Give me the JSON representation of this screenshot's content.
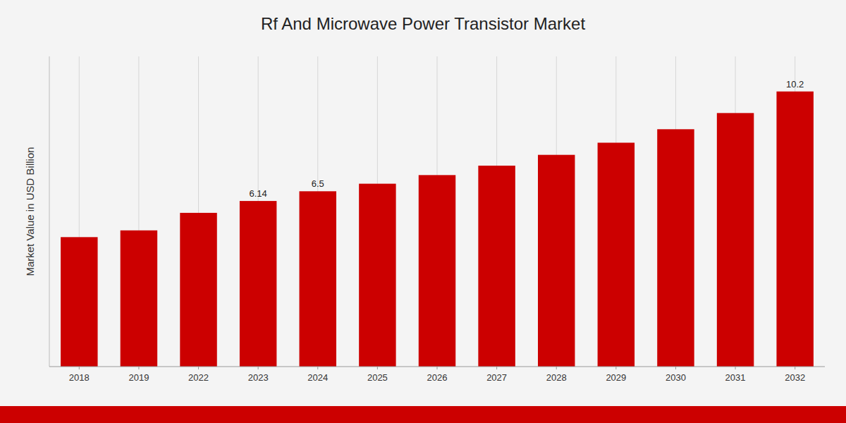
{
  "chart_data": {
    "type": "bar",
    "title": "Rf And Microwave Power Transistor Market",
    "ylabel": "Market Value in USD Billion",
    "categories": [
      "2018",
      "2019",
      "2022",
      "2023",
      "2024",
      "2025",
      "2026",
      "2027",
      "2028",
      "2029",
      "2030",
      "2031",
      "2032"
    ],
    "values": [
      4.8,
      5.05,
      5.7,
      6.14,
      6.5,
      6.78,
      7.1,
      7.45,
      7.85,
      8.3,
      8.8,
      9.4,
      10.2
    ],
    "color": "#cc0000",
    "ylim": [
      0,
      11.5
    ],
    "yticks": [],
    "tick_labels": "x",
    "grid": true,
    "annotations": [
      {
        "x": "2023",
        "text": "6.14"
      },
      {
        "x": "2024",
        "text": "6.5"
      },
      {
        "x": "2032",
        "text": "10.2"
      }
    ]
  }
}
